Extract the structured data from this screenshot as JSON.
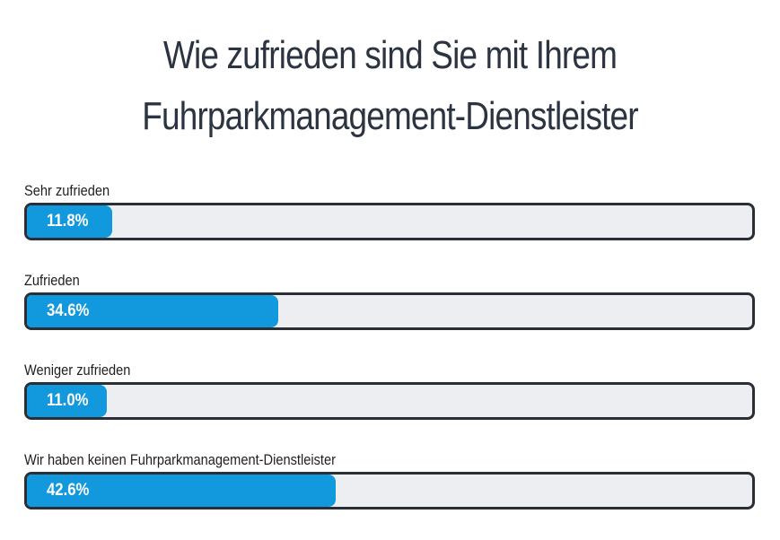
{
  "chart_data": {
    "type": "bar",
    "title_lines": [
      "Wie zufrieden sind Sie mit Ihrem",
      "Fuhrparkmanagement-Dienstleister"
    ],
    "categories": [
      "Sehr zufrieden",
      "Zufrieden",
      "Weniger zufrieden",
      "Wir haben keinen Fuhrparkmanagement-Dienstleister"
    ],
    "values": [
      11.8,
      34.6,
      11.0,
      42.6
    ],
    "value_labels": [
      "11.8%",
      "34.6%",
      "11.0%",
      "42.6%"
    ],
    "unit": "%",
    "xlim": [
      0,
      100
    ],
    "orientation": "horizontal",
    "colors": {
      "fill": "#1298dc",
      "track": "#eceef1",
      "border": "#2a2f36",
      "title": "#2b3440"
    }
  }
}
